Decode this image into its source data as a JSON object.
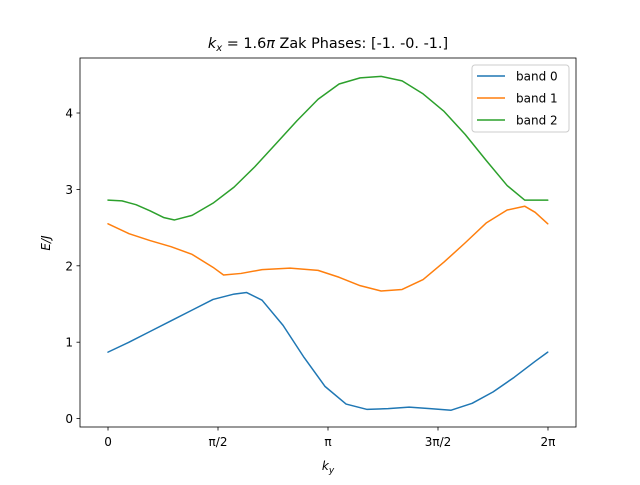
{
  "chart_data": {
    "type": "line",
    "title": "k_x = 1.6π Zak Phases: [-1. -0. -1.]",
    "title_parts": {
      "k": "k",
      "sub": "x",
      "eq": " = 1.6",
      "pi": "π",
      "rest": " Zak Phases: [-1. -0. -1.]"
    },
    "xlabel": "k_y",
    "xlabel_parts": {
      "k": "k",
      "sub": "y"
    },
    "ylabel": "E/J",
    "xlim": [
      -0.4,
      6.6832
    ],
    "ylim": [
      -0.11,
      4.72
    ],
    "xticks": [
      {
        "value": 0,
        "label": "0"
      },
      {
        "value": 1.5708,
        "label": "π/2"
      },
      {
        "value": 3.1416,
        "label": "π"
      },
      {
        "value": 4.7124,
        "label": "3π/2"
      },
      {
        "value": 6.2832,
        "label": "2π"
      }
    ],
    "yticks": [
      {
        "value": 0,
        "label": "0"
      },
      {
        "value": 1,
        "label": "1"
      },
      {
        "value": 2,
        "label": "2"
      },
      {
        "value": 3,
        "label": "3"
      },
      {
        "value": 4,
        "label": "4"
      }
    ],
    "grid": false,
    "legend_position": "top-right",
    "series": [
      {
        "name": "band 0",
        "color": "#1f77b4",
        "points": [
          [
            0.0,
            0.87
          ],
          [
            0.3,
            1.0
          ],
          [
            0.6,
            1.14
          ],
          [
            0.9,
            1.28
          ],
          [
            1.2,
            1.42
          ],
          [
            1.5,
            1.56
          ],
          [
            1.8,
            1.63
          ],
          [
            1.98,
            1.65
          ],
          [
            2.2,
            1.55
          ],
          [
            2.5,
            1.22
          ],
          [
            2.8,
            0.8
          ],
          [
            3.1,
            0.42
          ],
          [
            3.4,
            0.19
          ],
          [
            3.7,
            0.12
          ],
          [
            4.0,
            0.13
          ],
          [
            4.3,
            0.15
          ],
          [
            4.6,
            0.13
          ],
          [
            4.9,
            0.11
          ],
          [
            5.2,
            0.2
          ],
          [
            5.5,
            0.35
          ],
          [
            5.8,
            0.54
          ],
          [
            6.1,
            0.75
          ],
          [
            6.28,
            0.87
          ]
        ]
      },
      {
        "name": "band 1",
        "color": "#ff7f0e",
        "points": [
          [
            0.0,
            2.55
          ],
          [
            0.3,
            2.42
          ],
          [
            0.6,
            2.33
          ],
          [
            0.9,
            2.25
          ],
          [
            1.2,
            2.15
          ],
          [
            1.5,
            1.98
          ],
          [
            1.65,
            1.88
          ],
          [
            1.9,
            1.9
          ],
          [
            2.2,
            1.95
          ],
          [
            2.6,
            1.97
          ],
          [
            3.0,
            1.94
          ],
          [
            3.3,
            1.85
          ],
          [
            3.6,
            1.74
          ],
          [
            3.9,
            1.67
          ],
          [
            4.2,
            1.69
          ],
          [
            4.5,
            1.82
          ],
          [
            4.8,
            2.05
          ],
          [
            5.1,
            2.3
          ],
          [
            5.4,
            2.56
          ],
          [
            5.7,
            2.73
          ],
          [
            5.95,
            2.78
          ],
          [
            6.1,
            2.7
          ],
          [
            6.28,
            2.55
          ]
        ]
      },
      {
        "name": "band 2",
        "color": "#2ca02c",
        "points": [
          [
            0.0,
            2.86
          ],
          [
            0.2,
            2.85
          ],
          [
            0.4,
            2.8
          ],
          [
            0.6,
            2.72
          ],
          [
            0.8,
            2.63
          ],
          [
            0.95,
            2.6
          ],
          [
            1.2,
            2.66
          ],
          [
            1.5,
            2.82
          ],
          [
            1.8,
            3.03
          ],
          [
            2.1,
            3.3
          ],
          [
            2.4,
            3.6
          ],
          [
            2.7,
            3.9
          ],
          [
            3.0,
            4.18
          ],
          [
            3.3,
            4.38
          ],
          [
            3.6,
            4.46
          ],
          [
            3.9,
            4.48
          ],
          [
            4.2,
            4.42
          ],
          [
            4.5,
            4.25
          ],
          [
            4.8,
            4.02
          ],
          [
            5.1,
            3.72
          ],
          [
            5.4,
            3.38
          ],
          [
            5.7,
            3.05
          ],
          [
            5.95,
            2.86
          ],
          [
            6.1,
            2.86
          ],
          [
            6.28,
            2.86
          ]
        ]
      }
    ]
  }
}
